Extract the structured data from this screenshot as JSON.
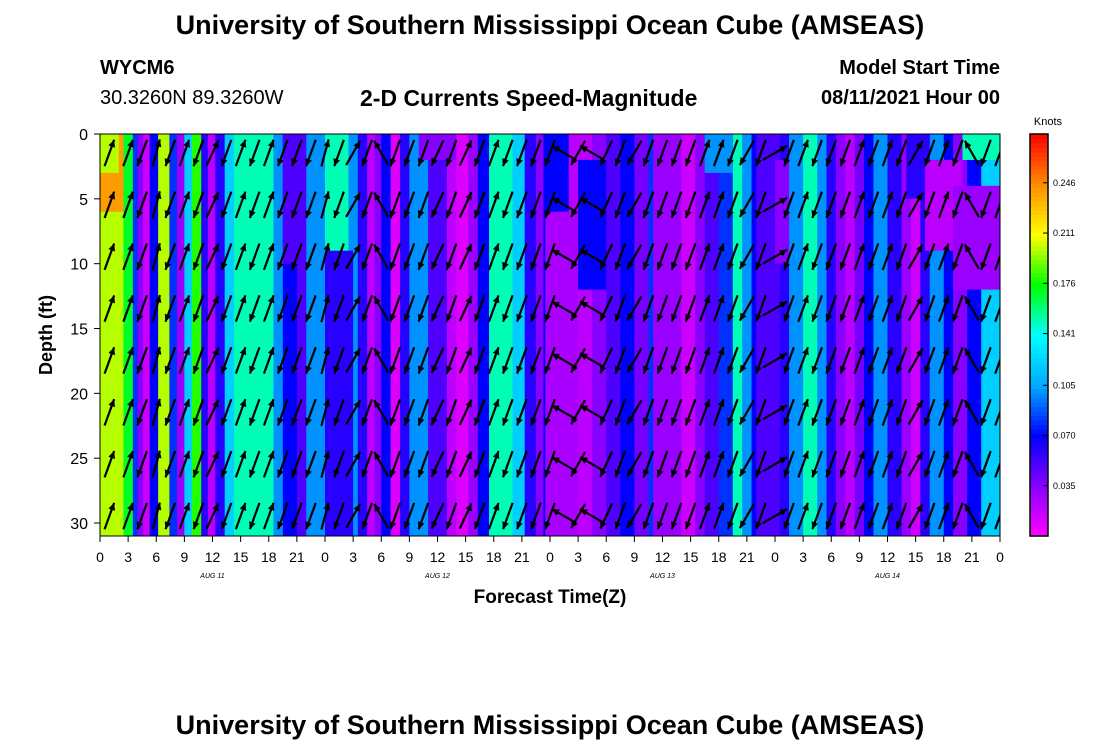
{
  "page": {
    "title_top": "University of Southern Mississippi Ocean Cube (AMSEAS)",
    "title_bottom": "University of Southern Mississippi Ocean Cube (AMSEAS)",
    "station_id": "WYCM6",
    "coords": "30.3260N  89.3260W",
    "model_start_label": "Model Start Time",
    "model_start_value": "08/11/2021 Hour 00"
  },
  "chart_data": {
    "type": "heatmap",
    "title": "2-D Currents Speed-Magnitude",
    "xlabel": "Forecast Time(Z)",
    "ylabel": "Depth (ft)",
    "x_range_hours": [
      0,
      96
    ],
    "y_range_ft": [
      0,
      31
    ],
    "y_ticks": [
      0,
      5,
      10,
      15,
      20,
      25,
      30
    ],
    "x_tick_labels": [
      "0",
      "3",
      "6",
      "9",
      "12",
      "15",
      "18",
      "21",
      "0",
      "3",
      "6",
      "9",
      "12",
      "15",
      "18",
      "21",
      "0",
      "3",
      "6",
      "9",
      "12",
      "15",
      "18",
      "21",
      "0",
      "3",
      "6",
      "9",
      "12",
      "15",
      "18",
      "21",
      "0"
    ],
    "day_labels": [
      {
        "label": "AUG 11",
        "hour": 12
      },
      {
        "label": "AUG 12",
        "hour": 36
      },
      {
        "label": "AUG 13",
        "hour": 60
      },
      {
        "label": "AUG 14",
        "hour": 84
      }
    ],
    "colorbar": {
      "units": "Knots",
      "min": 0,
      "max": 0.28,
      "tick_labels": [
        "0.246",
        "0.211",
        "0.176",
        "0.141",
        "0.105",
        "0.070",
        "0.035"
      ],
      "tick_values": [
        0.246,
        0.211,
        0.176,
        0.141,
        0.105,
        0.07,
        0.035
      ],
      "colors": [
        "#ff00ff",
        "#8800ff",
        "#0000ff",
        "#00aaff",
        "#00ffff",
        "#00ff00",
        "#ffff00",
        "#ff8c00",
        "#ff0000"
      ]
    },
    "speed_columns": [
      {
        "t0": 0.0,
        "t1": 2.5,
        "speed": 0.24
      },
      {
        "t0": 2.5,
        "t1": 3.5,
        "speed": 0.17
      },
      {
        "t0": 3.5,
        "t1": 4.0,
        "speed": 0.08
      },
      {
        "t0": 4.0,
        "t1": 4.6,
        "speed": 0.035
      },
      {
        "t0": 4.6,
        "t1": 5.3,
        "speed": 0.015
      },
      {
        "t0": 5.3,
        "t1": 6.2,
        "speed": 0.07
      },
      {
        "t0": 6.2,
        "t1": 7.4,
        "speed": 0.2
      },
      {
        "t0": 7.4,
        "t1": 8.2,
        "speed": 0.08
      },
      {
        "t0": 8.2,
        "t1": 9.0,
        "speed": 0.03
      },
      {
        "t0": 9.0,
        "t1": 9.8,
        "speed": 0.12
      },
      {
        "t0": 9.8,
        "t1": 10.8,
        "speed": 0.18
      },
      {
        "t0": 10.8,
        "t1": 11.5,
        "speed": 0.06
      },
      {
        "t0": 11.5,
        "t1": 12.3,
        "speed": 0.02
      },
      {
        "t0": 12.3,
        "t1": 13.3,
        "speed": 0.06
      },
      {
        "t0": 13.3,
        "t1": 14.3,
        "speed": 0.12
      },
      {
        "t0": 14.3,
        "t1": 18.5,
        "speed": 0.15
      },
      {
        "t0": 18.5,
        "t1": 19.5,
        "speed": 0.1
      },
      {
        "t0": 19.5,
        "t1": 21.0,
        "speed": 0.07
      },
      {
        "t0": 21.0,
        "t1": 22.0,
        "speed": 0.05
      },
      {
        "t0": 22.0,
        "t1": 24.0,
        "speed": 0.1
      },
      {
        "t0": 24.0,
        "t1": 26.5,
        "speed": 0.15
      },
      {
        "t0": 26.5,
        "t1": 27.5,
        "speed": 0.1
      },
      {
        "t0": 27.5,
        "t1": 28.5,
        "speed": 0.06
      },
      {
        "t0": 28.5,
        "t1": 29.3,
        "speed": 0.02
      },
      {
        "t0": 29.3,
        "t1": 30.0,
        "speed": 0.035
      },
      {
        "t0": 30.0,
        "t1": 31.0,
        "speed": 0.07
      },
      {
        "t0": 31.0,
        "t1": 32.0,
        "speed": 0.01
      },
      {
        "t0": 32.0,
        "t1": 33.0,
        "speed": 0.06
      },
      {
        "t0": 33.0,
        "t1": 35.0,
        "speed": 0.1
      },
      {
        "t0": 35.0,
        "t1": 37.0,
        "speed": 0.05
      },
      {
        "t0": 37.0,
        "t1": 38.0,
        "speed": 0.02
      },
      {
        "t0": 38.0,
        "t1": 39.3,
        "speed": 0.01
      },
      {
        "t0": 39.3,
        "t1": 40.3,
        "speed": 0.03
      },
      {
        "t0": 40.3,
        "t1": 41.5,
        "speed": 0.07
      },
      {
        "t0": 41.5,
        "t1": 44.0,
        "speed": 0.15
      },
      {
        "t0": 44.0,
        "t1": 45.3,
        "speed": 0.12
      },
      {
        "t0": 45.3,
        "t1": 46.5,
        "speed": 0.06
      },
      {
        "t0": 46.5,
        "t1": 47.3,
        "speed": 0.035
      },
      {
        "t0": 47.3,
        "t1": 48.3,
        "speed": 0.07
      },
      {
        "t0": 48.3,
        "t1": 50.0,
        "speed": 0.03
      },
      {
        "t0": 50.0,
        "t1": 52.5,
        "speed": 0.02
      },
      {
        "t0": 52.5,
        "t1": 54.0,
        "speed": 0.035
      },
      {
        "t0": 54.0,
        "t1": 55.5,
        "speed": 0.05
      },
      {
        "t0": 55.5,
        "t1": 57.0,
        "speed": 0.07
      },
      {
        "t0": 57.0,
        "t1": 58.5,
        "speed": 0.04
      },
      {
        "t0": 58.5,
        "t1": 59.5,
        "speed": 0.08
      },
      {
        "t0": 59.5,
        "t1": 60.5,
        "speed": 0.05
      },
      {
        "t0": 60.5,
        "t1": 61.5,
        "speed": 0.02
      },
      {
        "t0": 61.5,
        "t1": 63.5,
        "speed": 0.015
      },
      {
        "t0": 63.5,
        "t1": 64.5,
        "speed": 0.035
      },
      {
        "t0": 64.5,
        "t1": 66.0,
        "speed": 0.05
      },
      {
        "t0": 66.0,
        "t1": 67.5,
        "speed": 0.08
      },
      {
        "t0": 67.5,
        "t1": 68.5,
        "speed": 0.15
      },
      {
        "t0": 68.5,
        "t1": 69.5,
        "speed": 0.1
      },
      {
        "t0": 69.5,
        "t1": 71.0,
        "speed": 0.07
      },
      {
        "t0": 71.0,
        "t1": 72.5,
        "speed": 0.05
      },
      {
        "t0": 72.5,
        "t1": 73.5,
        "speed": 0.06
      },
      {
        "t0": 73.5,
        "t1": 75.0,
        "speed": 0.1
      },
      {
        "t0": 75.0,
        "t1": 76.5,
        "speed": 0.15
      },
      {
        "t0": 76.5,
        "t1": 77.5,
        "speed": 0.1
      },
      {
        "t0": 77.5,
        "t1": 78.5,
        "speed": 0.06
      },
      {
        "t0": 78.5,
        "t1": 79.5,
        "speed": 0.035
      },
      {
        "t0": 79.5,
        "t1": 80.5,
        "speed": 0.02
      },
      {
        "t0": 80.5,
        "t1": 81.5,
        "speed": 0.04
      },
      {
        "t0": 81.5,
        "t1": 82.5,
        "speed": 0.07
      },
      {
        "t0": 82.5,
        "t1": 84.0,
        "speed": 0.1
      },
      {
        "t0": 84.0,
        "t1": 85.5,
        "speed": 0.06
      },
      {
        "t0": 85.5,
        "t1": 86.5,
        "speed": 0.03
      },
      {
        "t0": 86.5,
        "t1": 87.5,
        "speed": 0.015
      },
      {
        "t0": 87.5,
        "t1": 88.5,
        "speed": 0.06
      },
      {
        "t0": 88.5,
        "t1": 90.0,
        "speed": 0.1
      },
      {
        "t0": 90.0,
        "t1": 91.0,
        "speed": 0.07
      },
      {
        "t0": 91.0,
        "t1": 92.5,
        "speed": 0.035
      },
      {
        "t0": 92.5,
        "t1": 94.0,
        "speed": 0.07
      },
      {
        "t0": 94.0,
        "t1": 96.0,
        "speed": 0.12
      }
    ],
    "speed_patches": [
      {
        "t0": 0.0,
        "t1": 2.0,
        "d0": 0,
        "d1": 3,
        "speed": 0.2
      },
      {
        "t0": 0.0,
        "t1": 2.5,
        "d0": 6,
        "d1": 31,
        "speed": 0.2
      },
      {
        "t0": 19.5,
        "t1": 21.5,
        "d0": 0,
        "d1": 10,
        "speed": 0.05
      },
      {
        "t0": 24.0,
        "t1": 27.0,
        "d0": 9,
        "d1": 31,
        "speed": 0.06
      },
      {
        "t0": 34.0,
        "t1": 38.0,
        "d0": 0,
        "d1": 2,
        "speed": 0.035
      },
      {
        "t0": 47.5,
        "t1": 50.0,
        "d0": 0,
        "d1": 6,
        "speed": 0.07
      },
      {
        "t0": 47.5,
        "t1": 51.0,
        "d0": 6,
        "d1": 31,
        "speed": 0.025
      },
      {
        "t0": 51.0,
        "t1": 54.0,
        "d0": 2,
        "d1": 12,
        "speed": 0.07
      },
      {
        "t0": 59.0,
        "t1": 62.0,
        "d0": 0,
        "d1": 31,
        "speed": 0.03
      },
      {
        "t0": 64.5,
        "t1": 67.5,
        "d0": 0,
        "d1": 3,
        "speed": 0.1
      },
      {
        "t0": 70.0,
        "t1": 72.0,
        "d0": 0,
        "d1": 31,
        "speed": 0.05
      },
      {
        "t0": 72.0,
        "t1": 73.5,
        "d0": 2,
        "d1": 10,
        "speed": 0.035
      },
      {
        "t0": 86.0,
        "t1": 88.5,
        "d0": 0,
        "d1": 5,
        "speed": 0.06
      },
      {
        "t0": 88.0,
        "t1": 92.0,
        "d0": 2,
        "d1": 9,
        "speed": 0.02
      },
      {
        "t0": 91.0,
        "t1": 96.0,
        "d0": 4,
        "d1": 12,
        "speed": 0.03
      },
      {
        "t0": 92.0,
        "t1": 96.0,
        "d0": 0,
        "d1": 2,
        "speed": 0.15
      }
    ],
    "vector_depths_ft": [
      1,
      5,
      9,
      13,
      17,
      21,
      25,
      29
    ],
    "vector_hours": [
      1,
      3,
      4.5,
      6,
      7.5,
      9,
      10.5,
      12,
      13.5,
      15,
      16.5,
      18,
      19.5,
      21,
      22.5,
      24,
      25.5,
      27,
      28.5,
      30,
      31.5,
      33,
      34.5,
      36,
      37.5,
      39,
      40.5,
      42,
      43.5,
      45,
      46.5,
      48,
      49.5,
      51,
      52.5,
      54,
      55.5,
      57,
      58.5,
      60,
      61.5,
      63,
      64.5,
      66,
      67.5,
      69,
      70.5,
      72,
      73.5,
      75,
      76.5,
      78,
      79.5,
      81,
      82.5,
      84,
      85.5,
      87,
      88.5,
      90,
      91.5,
      93,
      94.5,
      96
    ],
    "vector_direction_deg": [
      20,
      20,
      200,
      15,
      200,
      20,
      200,
      25,
      200,
      20,
      200,
      20,
      200,
      200,
      200,
      15,
      200,
      30,
      200,
      330,
      200,
      200,
      200,
      205,
      200,
      25,
      200,
      20,
      200,
      200,
      200,
      200,
      300,
      210,
      300,
      205,
      200,
      210,
      200,
      200,
      200,
      200,
      20,
      20,
      200,
      210,
      200,
      60,
      200,
      20,
      200,
      200,
      200,
      20,
      200,
      20,
      200,
      30,
      200,
      20,
      200,
      330,
      200,
      20
    ]
  }
}
